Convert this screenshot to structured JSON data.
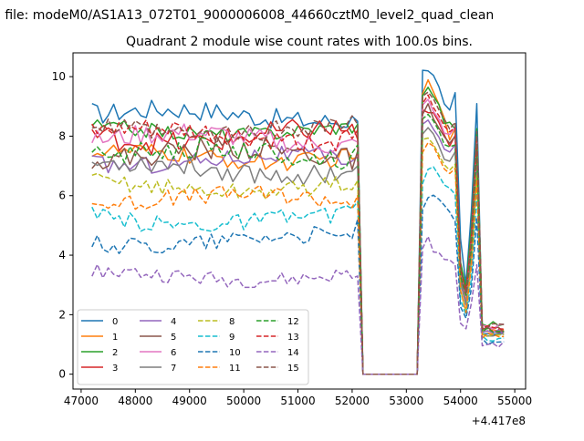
{
  "figure": {
    "suptitle": "n file: modeM0/AS1A13_072T01_9000006008_44660cztM0_level2_quad_clean"
  },
  "chart_data": {
    "type": "line",
    "title": "Quadrant 2 module wise count rates with 100.0s bins.",
    "xlabel": "",
    "ylabel": "",
    "x_offset_label": "+4.417e8",
    "xlim": [
      46850,
      55200
    ],
    "ylim": [
      -0.5,
      10.8
    ],
    "x_ticks": [
      47000,
      48000,
      49000,
      50000,
      51000,
      52000,
      53000,
      54000,
      55000
    ],
    "y_ticks": [
      0,
      2,
      4,
      6,
      8,
      10
    ],
    "grid": false,
    "legend_position": "lower-left",
    "x_start": 47200,
    "x_step": 100,
    "num_points": 77,
    "segments": [
      {
        "start": 47200,
        "end": 52100
      },
      {
        "start": 52200,
        "end": 53200,
        "note": "gap"
      },
      {
        "start": 53300,
        "end": 54700
      }
    ],
    "gap_value": 0,
    "series": [
      {
        "name": "0",
        "color": "#1f77b4",
        "dash": "solid",
        "mean1": 8.7,
        "amp1": 0.35,
        "end1": 8.5,
        "peak": [
          10.3,
          10.25,
          10.0,
          9.6,
          9.0
        ],
        "late": [
          8.8,
          9.4,
          4.5,
          3.0,
          5.5,
          9.0,
          1.4
        ]
      },
      {
        "name": "1",
        "color": "#ff7f0e",
        "dash": "solid",
        "mean1": 7.3,
        "amp1": 0.3,
        "end1": 7.3,
        "peak": [
          9.5,
          9.8,
          9.5,
          9.0,
          8.6
        ],
        "late": [
          7.8,
          8.3,
          3.5,
          2.5,
          4.5,
          8.0,
          1.5
        ]
      },
      {
        "name": "2",
        "color": "#2ca02c",
        "dash": "solid",
        "mean1": 8.2,
        "amp1": 0.25,
        "end1": 8.4,
        "peak": [
          9.4,
          9.6,
          9.4,
          9.0,
          8.5
        ],
        "late": [
          8.4,
          8.2,
          3.8,
          2.9,
          5.0,
          8.2,
          1.7
        ]
      },
      {
        "name": "3",
        "color": "#d62728",
        "dash": "solid",
        "mean1": 8.0,
        "amp1": 0.4,
        "end1": 7.9,
        "peak": [
          8.9,
          8.8,
          8.7,
          8.4,
          8.0
        ],
        "late": [
          7.6,
          8.1,
          3.4,
          2.7,
          4.4,
          7.9,
          1.5
        ]
      },
      {
        "name": "4",
        "color": "#9467bd",
        "dash": "solid",
        "mean1": 7.2,
        "amp1": 0.3,
        "end1": 7.3,
        "peak": [
          8.4,
          8.6,
          8.2,
          7.9,
          7.6
        ],
        "late": [
          7.4,
          7.7,
          3.1,
          2.4,
          4.0,
          7.3,
          1.4
        ]
      },
      {
        "name": "5",
        "color": "#8c564b",
        "dash": "solid",
        "mean1": 7.4,
        "amp1": 0.4,
        "end1": 7.5,
        "peak": [
          8.7,
          9.0,
          8.6,
          8.2,
          7.9
        ],
        "late": [
          7.7,
          7.9,
          3.3,
          2.6,
          4.2,
          7.6,
          1.5
        ]
      },
      {
        "name": "6",
        "color": "#e377c2",
        "dash": "solid",
        "mean1": 7.9,
        "amp1": 0.35,
        "end1": 7.8,
        "peak": [
          9.0,
          9.2,
          8.9,
          8.5,
          8.1
        ],
        "late": [
          8.0,
          8.3,
          3.5,
          2.7,
          4.5,
          7.9,
          1.6
        ]
      },
      {
        "name": "7",
        "color": "#7f7f7f",
        "dash": "solid",
        "mean1": 6.9,
        "amp1": 0.35,
        "end1": 7.0,
        "peak": [
          8.0,
          8.3,
          8.0,
          7.6,
          7.3
        ],
        "late": [
          7.1,
          7.4,
          3.0,
          2.3,
          3.9,
          7.0,
          1.3
        ]
      },
      {
        "name": "8",
        "color": "#bcbd22",
        "dash": "dashed",
        "mean1": 6.3,
        "amp1": 0.3,
        "end1": 6.5,
        "peak": [
          7.8,
          8.0,
          7.7,
          7.3,
          7.0
        ],
        "late": [
          6.8,
          7.1,
          2.9,
          2.2,
          3.7,
          6.8,
          1.3
        ]
      },
      {
        "name": "9",
        "color": "#17becf",
        "dash": "dashed",
        "mean1": 5.2,
        "amp1": 0.3,
        "end1": 5.8,
        "peak": [
          6.5,
          6.8,
          7.0,
          6.6,
          6.4
        ],
        "late": [
          6.2,
          6.0,
          2.5,
          2.0,
          3.3,
          6.0,
          1.2
        ]
      },
      {
        "name": "10",
        "color": "#1f77b4",
        "dash": "dashed",
        "mean1": 4.5,
        "amp1": 0.3,
        "end1": 5.2,
        "peak": [
          5.6,
          5.9,
          6.1,
          5.8,
          5.6
        ],
        "late": [
          5.4,
          5.2,
          2.2,
          1.8,
          2.9,
          5.2,
          1.1
        ]
      },
      {
        "name": "11",
        "color": "#ff7f0e",
        "dash": "dashed",
        "mean1": 5.9,
        "amp1": 0.3,
        "end1": 6.0,
        "peak": [
          7.5,
          7.8,
          7.6,
          7.2,
          6.9
        ],
        "late": [
          6.7,
          6.9,
          2.9,
          2.1,
          3.6,
          6.5,
          1.3
        ]
      },
      {
        "name": "12",
        "color": "#2ca02c",
        "dash": "dashed",
        "mean1": 7.4,
        "amp1": 0.35,
        "end1": 7.7,
        "peak": [
          8.6,
          8.8,
          8.5,
          8.1,
          7.8
        ],
        "late": [
          7.6,
          7.8,
          3.3,
          2.6,
          4.3,
          7.6,
          1.5
        ]
      },
      {
        "name": "13",
        "color": "#d62728",
        "dash": "dashed",
        "mean1": 8.0,
        "amp1": 0.35,
        "end1": 8.2,
        "peak": [
          9.1,
          9.3,
          9.0,
          8.6,
          8.3
        ],
        "late": [
          8.1,
          8.3,
          3.5,
          2.8,
          4.6,
          8.0,
          1.6
        ]
      },
      {
        "name": "14",
        "color": "#9467bd",
        "dash": "dashed",
        "mean1": 3.3,
        "amp1": 0.25,
        "end1": 3.3,
        "peak": [
          4.2,
          4.6,
          4.2,
          4.0,
          3.9
        ],
        "late": [
          3.8,
          3.6,
          1.8,
          1.5,
          2.3,
          3.7,
          1.0
        ]
      },
      {
        "name": "15",
        "color": "#8c564b",
        "dash": "dashed",
        "mean1": 8.2,
        "amp1": 0.35,
        "end1": 8.4,
        "peak": [
          9.3,
          9.5,
          9.2,
          8.8,
          8.5
        ],
        "late": [
          8.2,
          8.5,
          3.6,
          2.8,
          4.7,
          8.2,
          1.6
        ]
      }
    ]
  }
}
